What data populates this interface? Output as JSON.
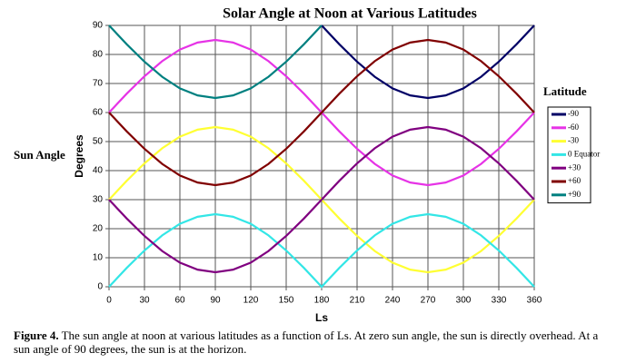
{
  "chart_data": {
    "type": "line",
    "title": "Solar Angle at Noon at Various Latitudes",
    "side_label": "Sun Angle",
    "ylabel": "Degrees",
    "xlabel": "Ls",
    "legend_title": "Latitude",
    "legend": "right",
    "grid": true,
    "xlim": [
      0,
      360
    ],
    "xticks": [
      0,
      30,
      60,
      90,
      120,
      150,
      180,
      210,
      240,
      270,
      300,
      330,
      360
    ],
    "ylim": [
      0,
      90
    ],
    "yticks": [
      0,
      10,
      20,
      30,
      40,
      50,
      60,
      70,
      80,
      90
    ],
    "x": [
      0,
      15,
      30,
      45,
      60,
      75,
      90,
      105,
      120,
      135,
      150,
      165,
      180,
      195,
      210,
      225,
      240,
      255,
      270,
      285,
      300,
      315,
      330,
      345,
      360
    ],
    "series": [
      {
        "name": "-90",
        "color": "#000066",
        "values": [
          null,
          null,
          null,
          null,
          null,
          null,
          null,
          null,
          null,
          null,
          null,
          null,
          90,
          83.5,
          77.5,
          72.3,
          68.3,
          65.9,
          65,
          65.9,
          68.3,
          72.3,
          77.5,
          83.5,
          90
        ]
      },
      {
        "name": "-60",
        "color": "#e633e6",
        "values": [
          60,
          66.5,
          72.5,
          77.7,
          81.7,
          84.1,
          85,
          84.1,
          81.7,
          77.7,
          72.5,
          66.5,
          60,
          53.5,
          47.5,
          42.3,
          38.3,
          35.9,
          35,
          35.9,
          38.3,
          42.3,
          47.5,
          53.5,
          60
        ]
      },
      {
        "name": "-30",
        "color": "#ffff33",
        "values": [
          30,
          36.5,
          42.5,
          47.7,
          51.7,
          54.1,
          55,
          54.1,
          51.7,
          47.7,
          42.5,
          36.5,
          30,
          23.5,
          17.5,
          12.3,
          8.3,
          5.9,
          5,
          5.9,
          8.3,
          12.3,
          17.5,
          23.5,
          30
        ]
      },
      {
        "name": "0 Equator",
        "color": "#33e6e6",
        "values": [
          0,
          6.5,
          12.5,
          17.7,
          21.7,
          24.1,
          25,
          24.1,
          21.7,
          17.7,
          12.5,
          6.5,
          0,
          6.5,
          12.5,
          17.7,
          21.7,
          24.1,
          25,
          24.1,
          21.7,
          17.7,
          12.5,
          6.5,
          0
        ]
      },
      {
        "name": "+30",
        "color": "#800080",
        "values": [
          30,
          23.5,
          17.5,
          12.3,
          8.3,
          5.9,
          5,
          5.9,
          8.3,
          12.3,
          17.5,
          23.5,
          30,
          36.5,
          42.5,
          47.7,
          51.7,
          54.1,
          55,
          54.1,
          51.7,
          47.7,
          42.5,
          36.5,
          30
        ]
      },
      {
        "name": "+60",
        "color": "#800000",
        "values": [
          60,
          53.5,
          47.5,
          42.3,
          38.3,
          35.9,
          35,
          35.9,
          38.3,
          42.3,
          47.5,
          53.5,
          60,
          66.5,
          72.5,
          77.7,
          81.7,
          84.1,
          85,
          84.1,
          81.7,
          77.7,
          72.5,
          66.5,
          60
        ]
      },
      {
        "name": "+90",
        "color": "#008080",
        "values": [
          90,
          83.5,
          77.5,
          72.3,
          68.3,
          65.9,
          65,
          65.9,
          68.3,
          72.3,
          77.5,
          83.5,
          90,
          null,
          null,
          null,
          null,
          null,
          null,
          null,
          null,
          null,
          null,
          null,
          null
        ]
      }
    ]
  },
  "caption": {
    "label": "Figure 4.",
    "text": "The sun angle at noon at various latitudes as a function of Ls.  At zero sun angle, the sun is directly overhead.  At a sun angle of 90 degrees, the sun is at the horizon."
  }
}
